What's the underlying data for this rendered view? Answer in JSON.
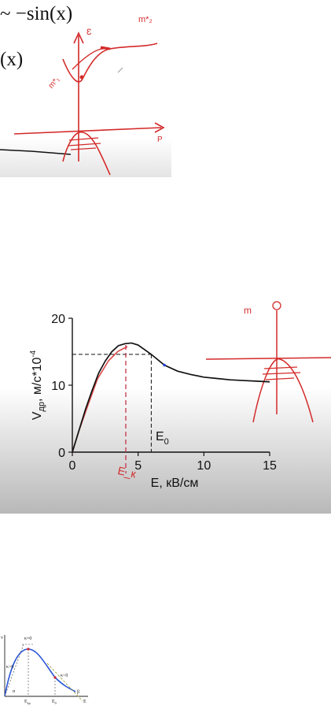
{
  "top_panel": {
    "formula_line1": "~ −sin(x)",
    "formula_line2": "(x)"
  },
  "chart_data": {
    "type": "line",
    "xlabel": "E, кВ/см",
    "ylabel_main": "V",
    "ylabel_sub": "др",
    "ylabel_rest": ", м/с*10",
    "ylabel_sup": "-4",
    "xlim": [
      0,
      15
    ],
    "ylim": [
      0,
      20
    ],
    "x_ticks": [
      "0",
      "5",
      "10",
      "15"
    ],
    "y_ticks": [
      "0",
      "10",
      "20"
    ],
    "annotation_E0_main": "E",
    "annotation_E0_sub": "0",
    "dashed_level_x": 6,
    "dashed_level_y": 14.6,
    "series": [
      {
        "x": [
          0,
          0.5,
          1,
          1.5,
          2,
          2.5,
          3,
          3.5,
          4,
          4.5,
          5,
          5.5,
          6,
          7,
          8,
          9,
          10,
          11,
          12,
          13,
          14,
          15
        ],
        "y": [
          0,
          3.2,
          6.4,
          9.2,
          11.8,
          13.6,
          15.0,
          15.9,
          16.2,
          16.3,
          16.0,
          15.3,
          14.6,
          13.0,
          12.1,
          11.6,
          11.2,
          11.0,
          10.8,
          10.7,
          10.6,
          10.5
        ]
      }
    ],
    "colors": {
      "curve": "#111111",
      "ink": "#d42a2a",
      "axis": "#111111"
    }
  },
  "bottom_panel": {
    "label_v": "v",
    "label_kgt": "κ>0",
    "label_keq": "κ=0",
    "label_klt": "κ<0",
    "label_alpha": "α",
    "label_beta": "β",
    "label_E": "E",
    "label_Ecr_main": "E",
    "label_Ecr_sub": "кр",
    "label_E0_main": "E",
    "label_E0_sub": "0"
  }
}
